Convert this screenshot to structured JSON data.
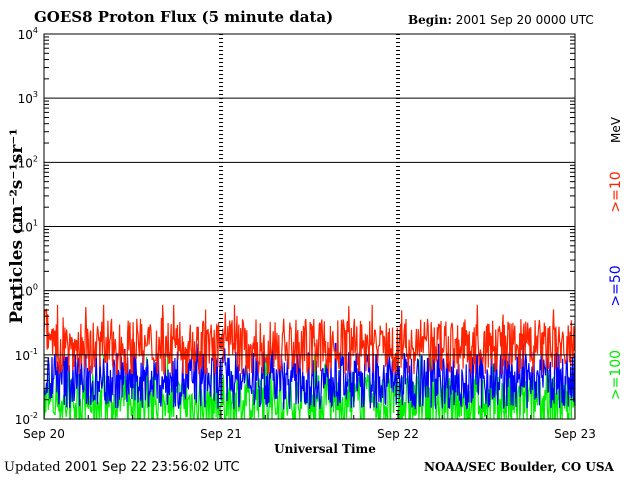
{
  "header": {
    "title": "GOES8 Proton Flux (5 minute data)",
    "begin_label": "Begin:",
    "begin_value": "2001 Sep 20 0000 UTC"
  },
  "footer": {
    "updated_label": "Updated",
    "updated_value": "2001 Sep 22 23:56:02 UTC",
    "credit": "NOAA/SEC Boulder, CO USA"
  },
  "chart_data": {
    "type": "line",
    "xlabel": "Universal Time",
    "ylabel": "Particles cm⁻²s⁻¹sr⁻¹",
    "yscale": "log",
    "ylim": [
      0.01,
      10000
    ],
    "x_range_days": [
      0,
      3
    ],
    "x_ticks": [
      "Sep 20",
      "Sep 21",
      "Sep 22",
      "Sep 23"
    ],
    "y_ticks": [
      {
        "value": 0.01,
        "base": "10",
        "exp": "-2"
      },
      {
        "value": 0.1,
        "base": "10",
        "exp": "-1"
      },
      {
        "value": 1,
        "base": "10",
        "exp": "0"
      },
      {
        "value": 10,
        "base": "10",
        "exp": "1"
      },
      {
        "value": 100,
        "base": "10",
        "exp": "2"
      },
      {
        "value": 1000,
        "base": "10",
        "exp": "3"
      },
      {
        "value": 10000,
        "base": "10",
        "exp": "4"
      }
    ],
    "grid": true,
    "legend": {
      "placement": "right",
      "unit": "MeV",
      "entries": [
        {
          "label": ">=10",
          "color": "#ff2200"
        },
        {
          "label": ">=50",
          "color": "#0000ff"
        },
        {
          "label": ">=100",
          "color": "#00ee00"
        }
      ]
    },
    "series": [
      {
        "name": ">=10",
        "color": "#ff2200",
        "typical": 0.13,
        "min": 0.05,
        "max": 0.6
      },
      {
        "name": ">=50",
        "color": "#0000ff",
        "typical": 0.04,
        "min": 0.012,
        "max": 0.15
      },
      {
        "name": ">=100",
        "color": "#00ee00",
        "typical": 0.018,
        "min": 0.01,
        "max": 0.1
      }
    ]
  }
}
